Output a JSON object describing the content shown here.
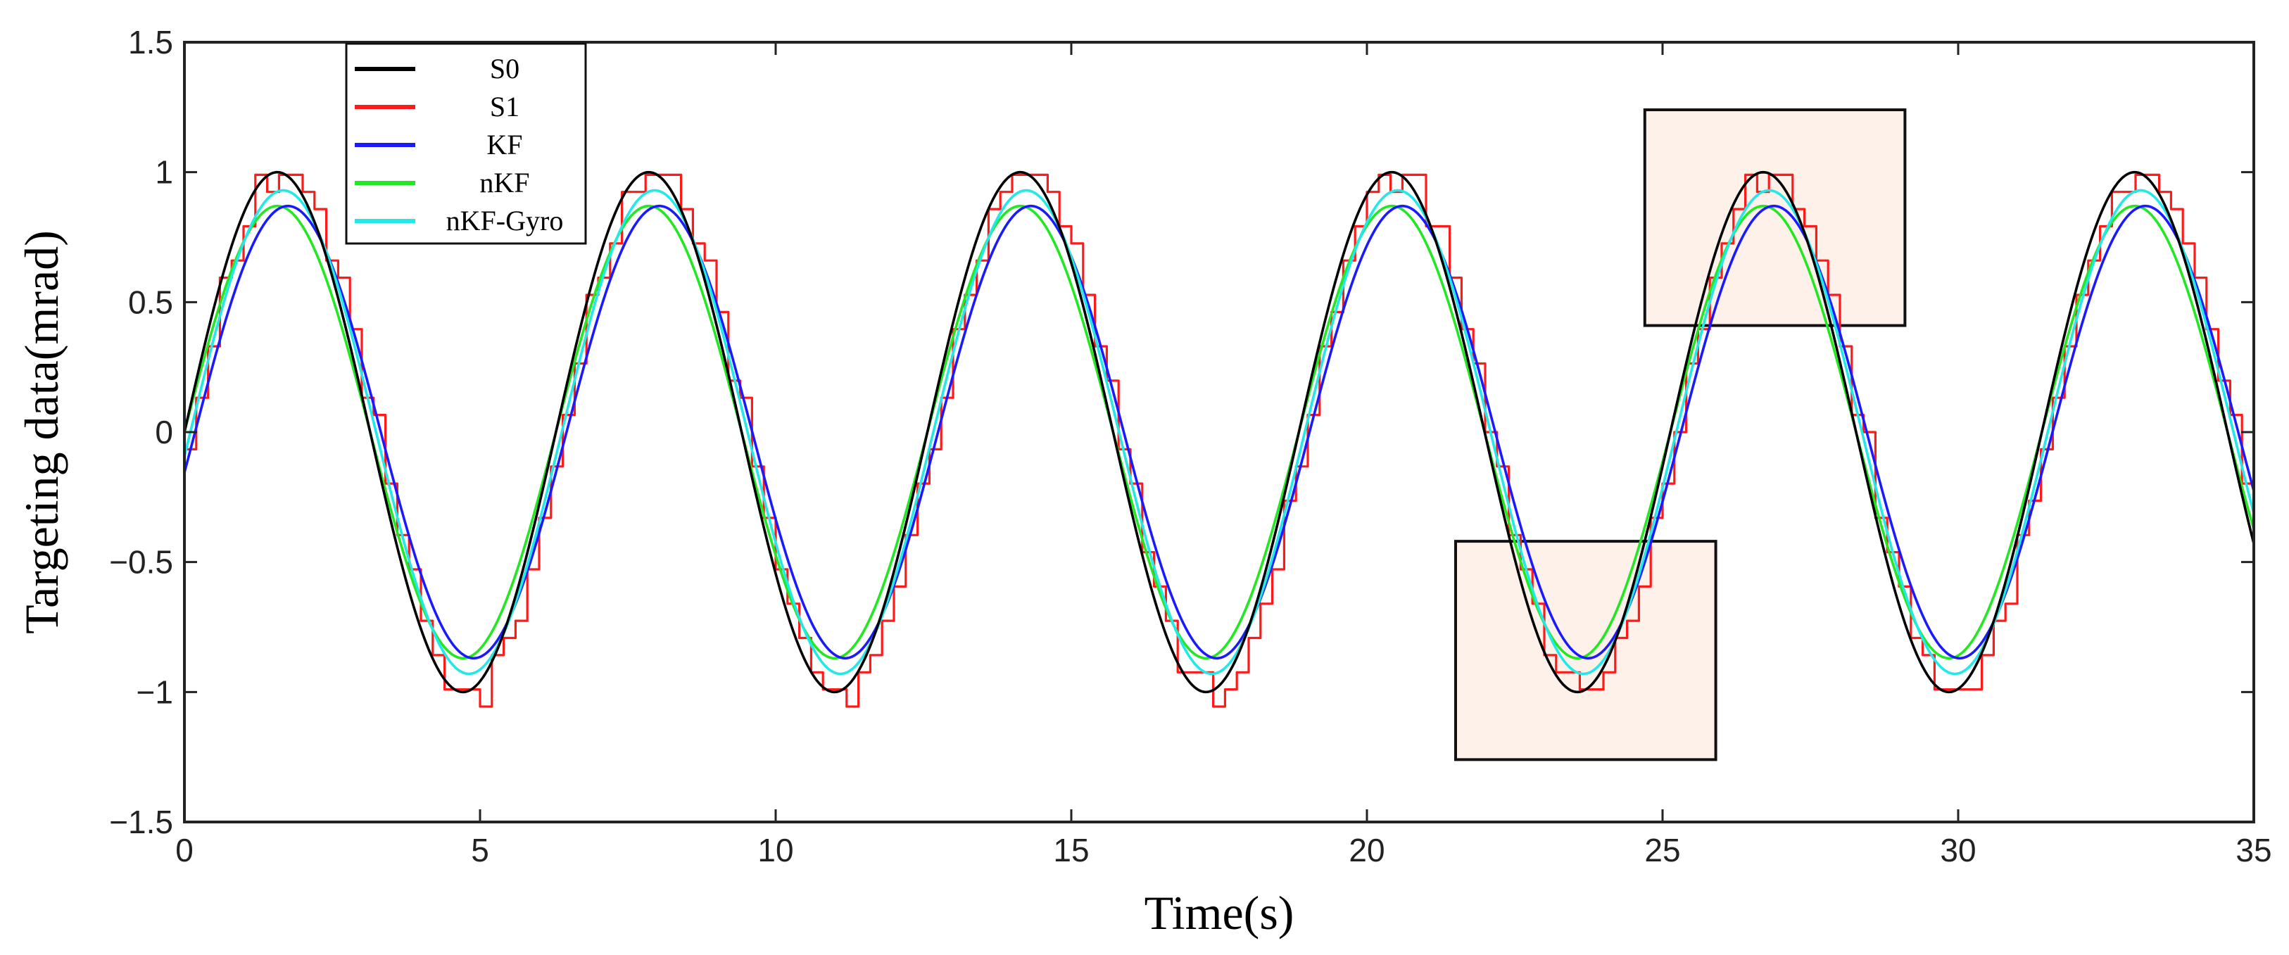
{
  "chart_data": {
    "type": "line",
    "title": "",
    "xlabel": "Time(s)",
    "ylabel": "Targeting data(mrad)",
    "xlim": [
      0,
      35
    ],
    "ylim": [
      -1.5,
      1.5
    ],
    "xticks": [
      0,
      5,
      10,
      15,
      20,
      25,
      30,
      35
    ],
    "yticks": [
      1.5,
      1,
      0.5,
      0,
      -0.5,
      -1,
      -1.5
    ],
    "xtick_labels": [
      "0",
      "5",
      "10",
      "15",
      "20",
      "25",
      "30",
      "35"
    ],
    "ytick_labels": [
      "1.5",
      "1",
      "0.5",
      "0",
      "−0.5",
      "−1",
      "−1.5"
    ],
    "grid": false,
    "legend_position": "top-left",
    "period": 6.283,
    "series": [
      {
        "name": "S0",
        "color": "#000000",
        "amplitude": 1.0,
        "lag": 0.0,
        "quantized": false
      },
      {
        "name": "S1",
        "color": "#ff1a1a",
        "amplitude": 1.0,
        "lag": 0.05,
        "quantized": true
      },
      {
        "name": "KF",
        "color": "#1a1aff",
        "amplitude": 0.87,
        "lag": 0.18,
        "quantized": false
      },
      {
        "name": "nKF",
        "color": "#22e822",
        "amplitude": 0.87,
        "lag": 0.0,
        "quantized": false
      },
      {
        "name": "nKF-Gyro",
        "color": "#22e8e8",
        "amplitude": 0.93,
        "lag": 0.1,
        "quantized": false
      }
    ],
    "zoom_boxes": [
      {
        "name": "upper",
        "x": [
          24.7,
          29.1
        ],
        "y": [
          0.41,
          1.24
        ],
        "fill": "#fdf1ea"
      },
      {
        "name": "lower",
        "x": [
          21.5,
          25.9
        ],
        "y": [
          -1.26,
          -0.42
        ],
        "fill": "#fdf1ea"
      }
    ]
  }
}
